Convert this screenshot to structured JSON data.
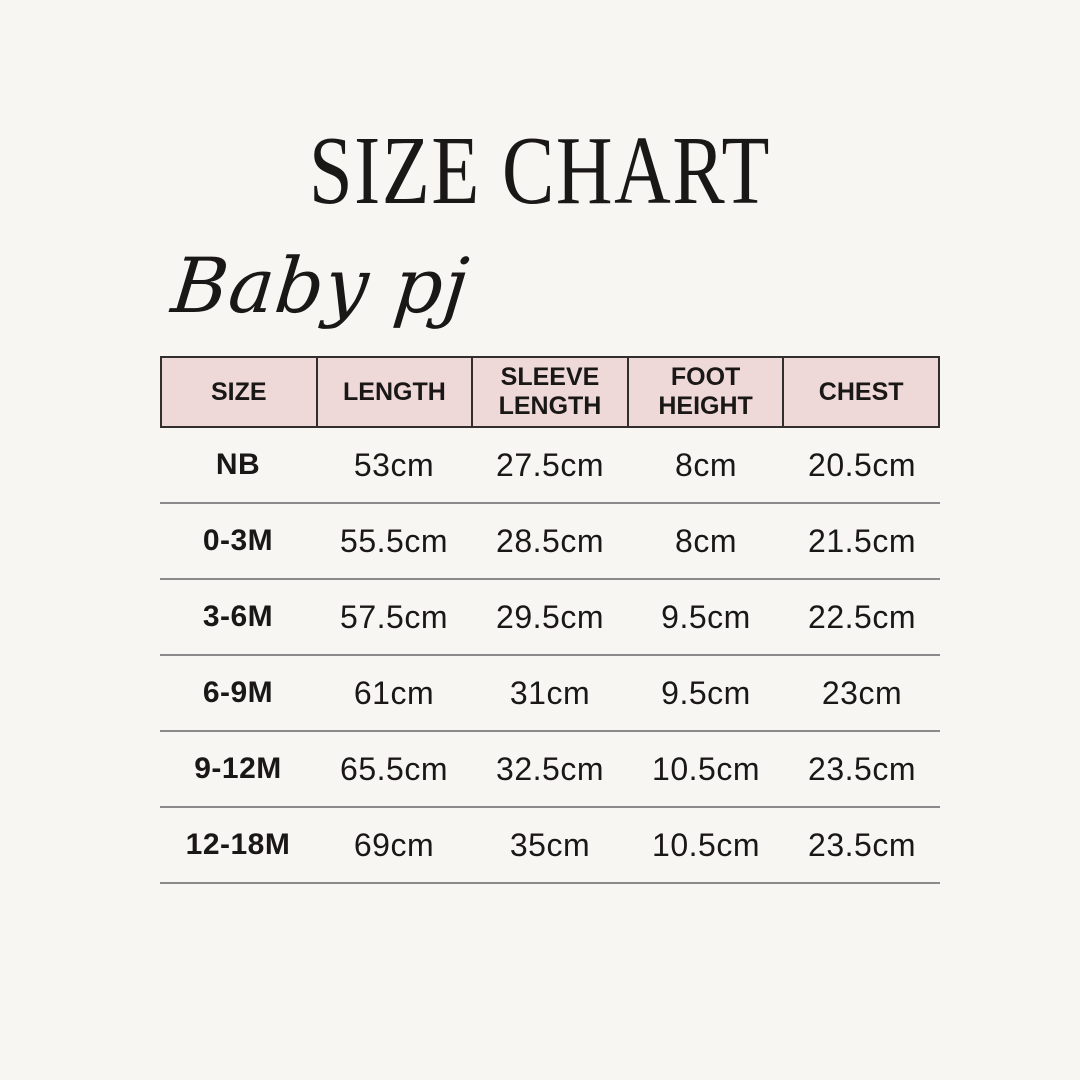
{
  "title": "SIZE CHART",
  "brand": "Baby pj",
  "colors": {
    "background": "#f8f6f2",
    "header_bg": "#eed8d8",
    "border": "#332e2e",
    "line": "#8a8a8a",
    "text": "#1a1717"
  },
  "chart_data": {
    "type": "table",
    "title": "SIZE CHART",
    "subtitle": "Baby pj",
    "columns": [
      "SIZE",
      "LENGTH",
      "SLEEVE LENGTH",
      "FOOT HEIGHT",
      "CHEST"
    ],
    "rows": [
      [
        "NB",
        "53cm",
        "27.5cm",
        "8cm",
        "20.5cm"
      ],
      [
        "0-3M",
        "55.5cm",
        "28.5cm",
        "8cm",
        "21.5cm"
      ],
      [
        "3-6M",
        "57.5cm",
        "29.5cm",
        "9.5cm",
        "22.5cm"
      ],
      [
        "6-9M",
        "61cm",
        "31cm",
        "9.5cm",
        "23cm"
      ],
      [
        "9-12M",
        "65.5cm",
        "32.5cm",
        "10.5cm",
        "23.5cm"
      ],
      [
        "12-18M",
        "69cm",
        "35cm",
        "10.5cm",
        "23.5cm"
      ]
    ],
    "layout": {
      "header_background": "#eed8d8",
      "row_separator": "gray-line",
      "units": "cm"
    }
  }
}
